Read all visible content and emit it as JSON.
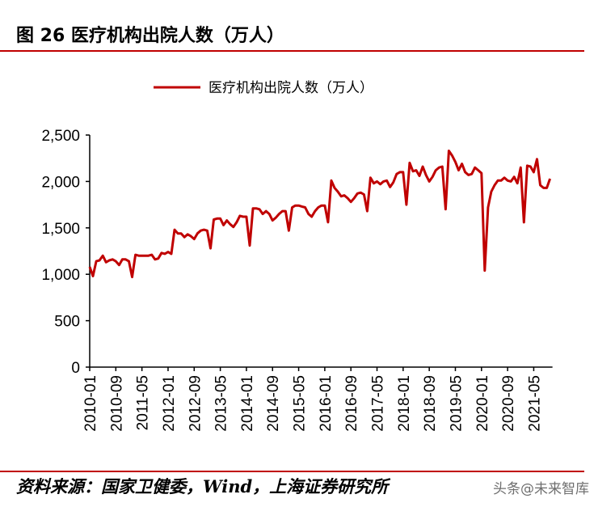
{
  "title": "图 26 医疗机构出院人数（万人）",
  "footer": "资料来源：国家卫健委，Wind，上海证券研究所",
  "watermark": "头条@未来智库",
  "colors": {
    "series": "#c00000",
    "rule": "#c00000"
  },
  "chart_data": {
    "type": "line",
    "title": "",
    "xlabel": "",
    "ylabel": "",
    "ylim": [
      0,
      2500
    ],
    "yticks": [
      "0",
      "500",
      "1,000",
      "1,500",
      "2,000",
      "2,500"
    ],
    "ytick_values": [
      0,
      500,
      1000,
      1500,
      2000,
      2500
    ],
    "xticks": [
      "2010-01",
      "2010-09",
      "2011-05",
      "2012-01",
      "2012-09",
      "2013-05",
      "2014-01",
      "2014-09",
      "2015-05",
      "2016-01",
      "2016-09",
      "2017-05",
      "2018-01",
      "2018-09",
      "2019-05",
      "2020-01",
      "2020-09",
      "2021-05"
    ],
    "x_start": "2010-01",
    "x_end": "2021-10",
    "grid": false,
    "legend_position": "top-center",
    "series": [
      {
        "name": "医疗机构出院人数（万人）",
        "values": [
          1080,
          980,
          1140,
          1150,
          1200,
          1130,
          1150,
          1160,
          1140,
          1100,
          1160,
          1160,
          1140,
          970,
          1210,
          1200,
          1200,
          1200,
          1200,
          1210,
          1160,
          1170,
          1230,
          1220,
          1240,
          1220,
          1480,
          1440,
          1440,
          1400,
          1430,
          1410,
          1380,
          1440,
          1470,
          1480,
          1470,
          1280,
          1590,
          1600,
          1600,
          1530,
          1580,
          1540,
          1510,
          1560,
          1630,
          1620,
          1620,
          1310,
          1710,
          1710,
          1700,
          1650,
          1680,
          1650,
          1580,
          1610,
          1650,
          1680,
          1680,
          1470,
          1720,
          1740,
          1740,
          1730,
          1720,
          1650,
          1620,
          1680,
          1720,
          1740,
          1740,
          1560,
          2010,
          1930,
          1890,
          1840,
          1850,
          1820,
          1780,
          1820,
          1870,
          1880,
          1860,
          1680,
          2040,
          1980,
          2000,
          1970,
          2000,
          2010,
          1940,
          1990,
          2080,
          2100,
          2100,
          1750,
          2200,
          2110,
          2120,
          2060,
          2160,
          2070,
          2000,
          2050,
          2120,
          2150,
          2160,
          1700,
          2330,
          2280,
          2210,
          2120,
          2190,
          2100,
          2070,
          2080,
          2150,
          2120,
          2090,
          1040,
          1720,
          1890,
          1960,
          2010,
          2010,
          2040,
          2010,
          2000,
          2050,
          1980,
          2150,
          1560,
          2170,
          2160,
          2100,
          2240,
          1960,
          1930,
          1930,
          2030
        ]
      }
    ]
  }
}
